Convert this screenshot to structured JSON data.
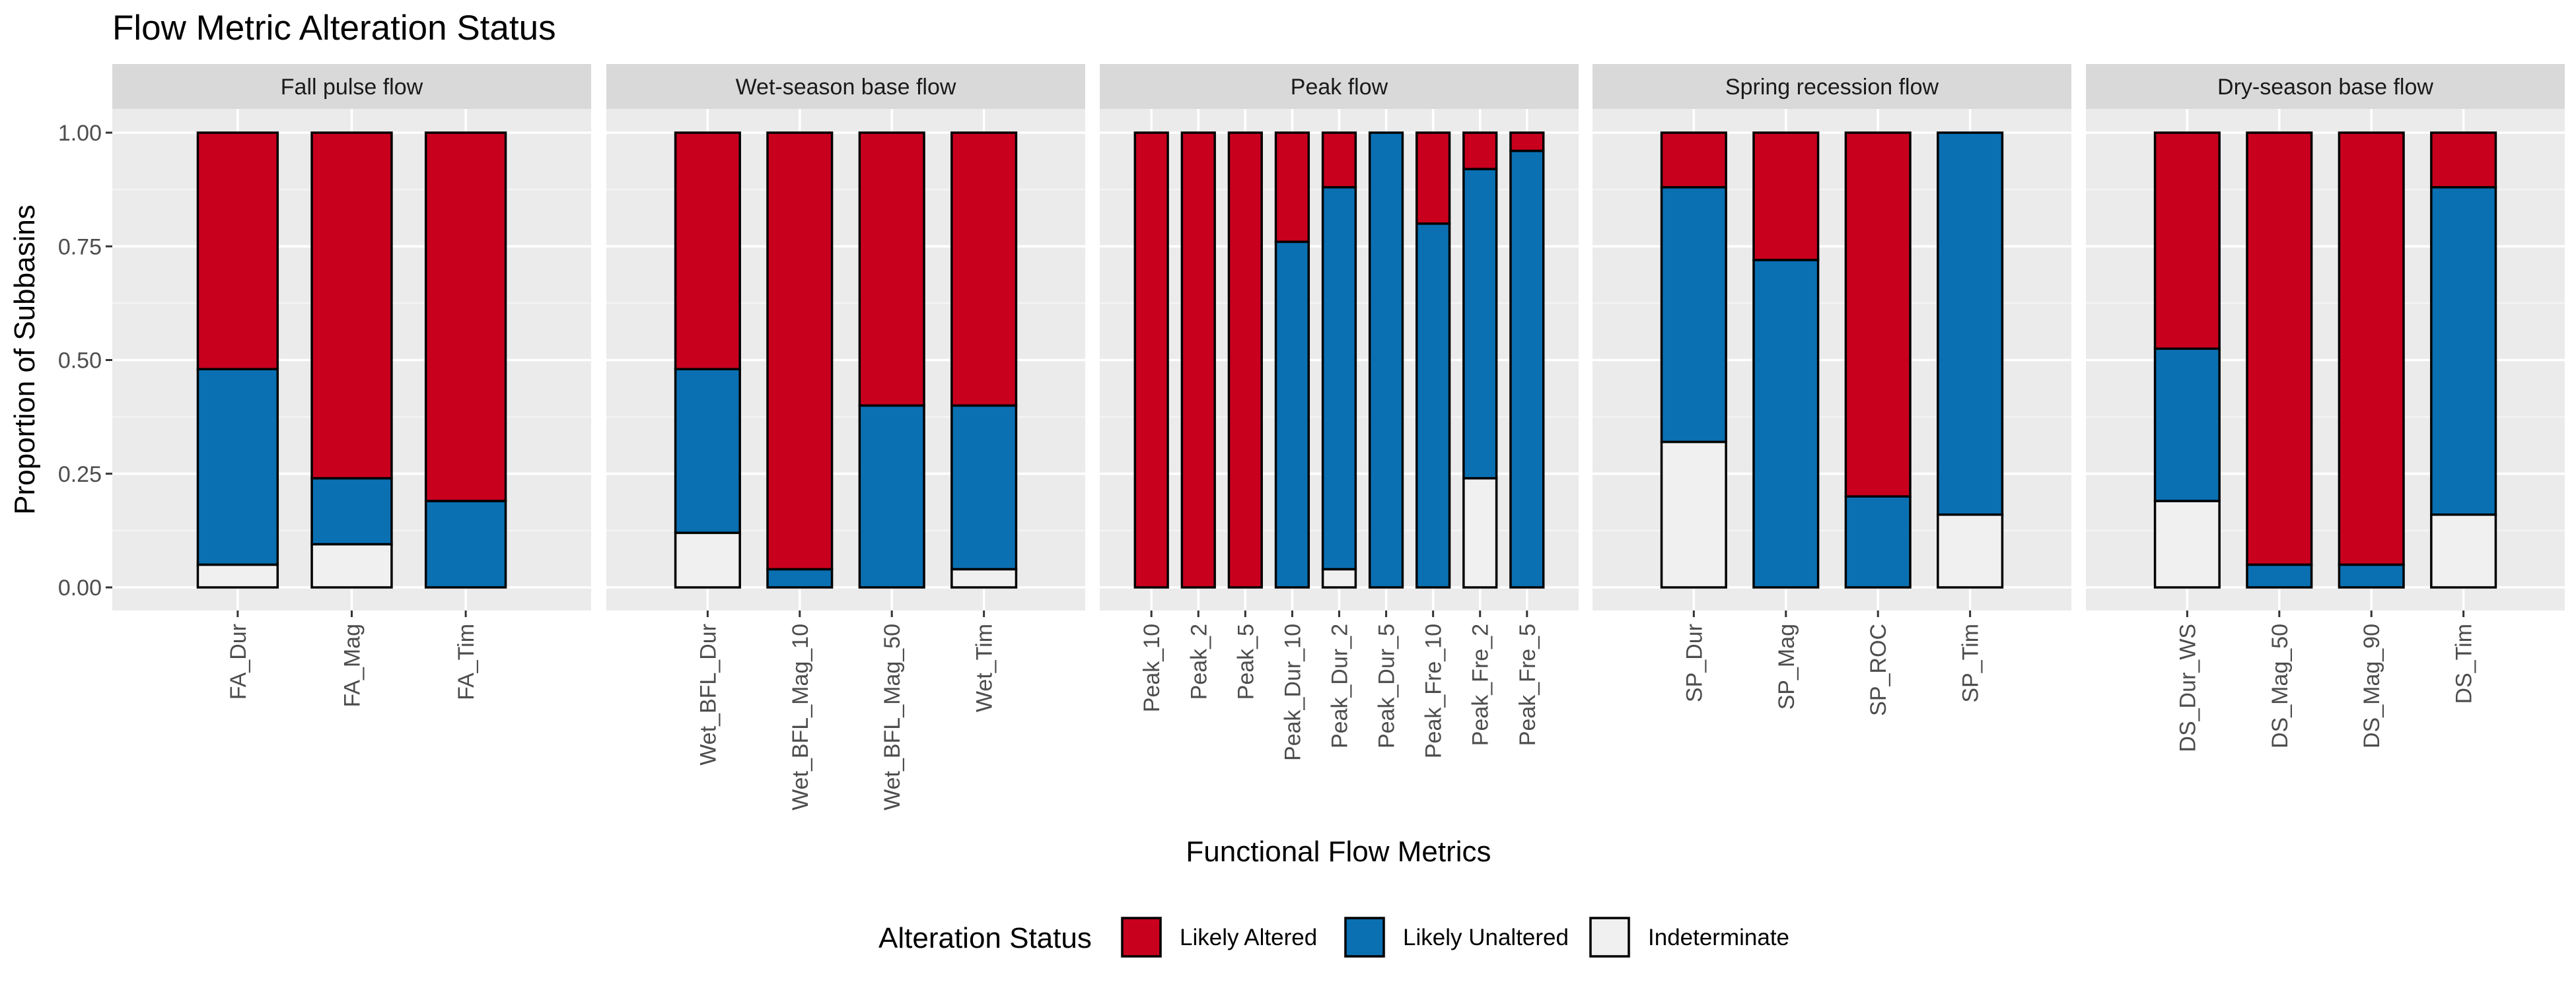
{
  "chart_data": {
    "type": "bar",
    "stacked": true,
    "title": "Flow Metric Alteration Status",
    "xlabel": "Functional Flow Metrics",
    "ylabel": "Proportion of Subbasins",
    "ylim": [
      0,
      1
    ],
    "yticks": [
      "0.00",
      "0.25",
      "0.50",
      "0.75",
      "1.00"
    ],
    "grid": true,
    "legend": {
      "title": "Alteration Status",
      "position": "bottom",
      "entries": [
        {
          "label": "Likely Altered",
          "color": "#C8001E"
        },
        {
          "label": "Likely Unaltered",
          "color": "#0A70B2"
        },
        {
          "label": "Indeterminate",
          "color": "#F0F0F0"
        }
      ]
    },
    "stack_order_bottom_to_top": [
      "Indeterminate",
      "Likely Unaltered",
      "Likely Altered"
    ],
    "facets": [
      {
        "label": "Fall pulse flow",
        "bars": [
          {
            "metric": "FA_Dur",
            "indeterminate": 0.05,
            "likely_unaltered": 0.43,
            "likely_altered": 0.52
          },
          {
            "metric": "FA_Mag",
            "indeterminate": 0.095,
            "likely_unaltered": 0.145,
            "likely_altered": 0.76
          },
          {
            "metric": "FA_Tim",
            "indeterminate": 0.0,
            "likely_unaltered": 0.19,
            "likely_altered": 0.81
          }
        ]
      },
      {
        "label": "Wet-season base flow",
        "bars": [
          {
            "metric": "Wet_BFL_Dur",
            "indeterminate": 0.12,
            "likely_unaltered": 0.36,
            "likely_altered": 0.52
          },
          {
            "metric": "Wet_BFL_Mag_10",
            "indeterminate": 0.0,
            "likely_unaltered": 0.04,
            "likely_altered": 0.96
          },
          {
            "metric": "Wet_BFL_Mag_50",
            "indeterminate": 0.0,
            "likely_unaltered": 0.4,
            "likely_altered": 0.6
          },
          {
            "metric": "Wet_Tim",
            "indeterminate": 0.04,
            "likely_unaltered": 0.36,
            "likely_altered": 0.6
          }
        ]
      },
      {
        "label": "Peak flow",
        "bars": [
          {
            "metric": "Peak_10",
            "indeterminate": 0.0,
            "likely_unaltered": 0.0,
            "likely_altered": 1.0
          },
          {
            "metric": "Peak_2",
            "indeterminate": 0.0,
            "likely_unaltered": 0.0,
            "likely_altered": 1.0
          },
          {
            "metric": "Peak_5",
            "indeterminate": 0.0,
            "likely_unaltered": 0.0,
            "likely_altered": 1.0
          },
          {
            "metric": "Peak_Dur_10",
            "indeterminate": 0.0,
            "likely_unaltered": 0.76,
            "likely_altered": 0.24
          },
          {
            "metric": "Peak_Dur_2",
            "indeterminate": 0.04,
            "likely_unaltered": 0.84,
            "likely_altered": 0.12
          },
          {
            "metric": "Peak_Dur_5",
            "indeterminate": 0.0,
            "likely_unaltered": 1.0,
            "likely_altered": 0.0
          },
          {
            "metric": "Peak_Fre_10",
            "indeterminate": 0.0,
            "likely_unaltered": 0.8,
            "likely_altered": 0.2
          },
          {
            "metric": "Peak_Fre_2",
            "indeterminate": 0.24,
            "likely_unaltered": 0.68,
            "likely_altered": 0.08
          },
          {
            "metric": "Peak_Fre_5",
            "indeterminate": 0.0,
            "likely_unaltered": 0.96,
            "likely_altered": 0.04
          }
        ]
      },
      {
        "label": "Spring recession flow",
        "bars": [
          {
            "metric": "SP_Dur",
            "indeterminate": 0.32,
            "likely_unaltered": 0.56,
            "likely_altered": 0.12
          },
          {
            "metric": "SP_Mag",
            "indeterminate": 0.0,
            "likely_unaltered": 0.72,
            "likely_altered": 0.28
          },
          {
            "metric": "SP_ROC",
            "indeterminate": 0.0,
            "likely_unaltered": 0.2,
            "likely_altered": 0.8
          },
          {
            "metric": "SP_Tim",
            "indeterminate": 0.16,
            "likely_unaltered": 0.84,
            "likely_altered": 0.0
          }
        ]
      },
      {
        "label": "Dry-season base flow",
        "bars": [
          {
            "metric": "DS_Dur_WS",
            "indeterminate": 0.19,
            "likely_unaltered": 0.335,
            "likely_altered": 0.475
          },
          {
            "metric": "DS_Mag_50",
            "indeterminate": 0.0,
            "likely_unaltered": 0.05,
            "likely_altered": 0.95
          },
          {
            "metric": "DS_Mag_90",
            "indeterminate": 0.0,
            "likely_unaltered": 0.05,
            "likely_altered": 0.95
          },
          {
            "metric": "DS_Tim",
            "indeterminate": 0.16,
            "likely_unaltered": 0.72,
            "likely_altered": 0.12
          }
        ]
      }
    ]
  }
}
